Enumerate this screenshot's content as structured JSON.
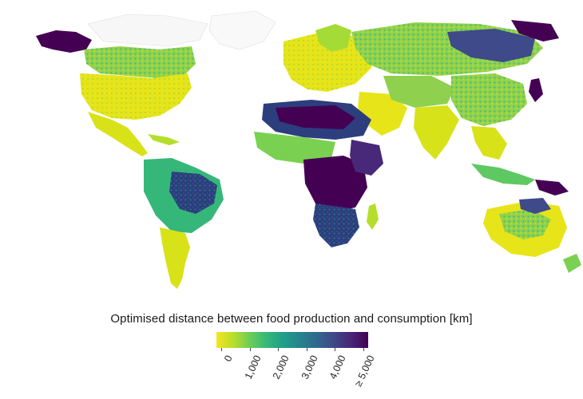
{
  "legend": {
    "title": "Optimised distance between food production and consumption [km]",
    "tick_labels": [
      "0",
      "1,000",
      "2,000",
      "3,000",
      "4,000",
      "≥ 5,000"
    ],
    "tick_values_km": [
      0,
      1000,
      2000,
      3000,
      4000,
      5000
    ],
    "colormap": [
      "#f5e524",
      "#b8de29",
      "#6dcd59",
      "#35b779",
      "#1f9e89",
      "#26828e",
      "#31688e",
      "#3e4a89",
      "#482878",
      "#440154"
    ]
  }
}
